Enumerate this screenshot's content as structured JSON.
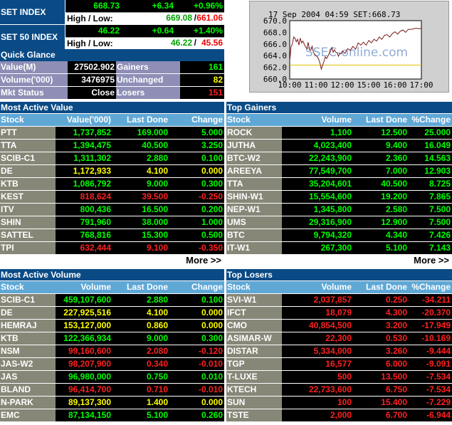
{
  "set_index": {
    "label": "SET INDEX",
    "value": "668.73",
    "change": "+6.34",
    "pct": "+0.96%",
    "hl_label": "High / Low:",
    "high": "669.08",
    "low": "661.06"
  },
  "set50_index": {
    "label": "SET 50 INDEX",
    "value": "46.22",
    "change": "+0.64",
    "pct": "+1.40%",
    "hl_label": "High / Low:",
    "high": "46.22",
    "low": "45.56"
  },
  "quick_glance": {
    "title": "Quick Glance",
    "rows": [
      {
        "k": "Value(M)",
        "v": "27502.902",
        "k2": "Gainers",
        "v2": "161"
      },
      {
        "k": "Volume('000)",
        "v": "3476975",
        "k2": "Unchanged",
        "v2": "82"
      },
      {
        "k": "Mkt Status",
        "v": "Close",
        "k2": "Losers",
        "v2": "151"
      }
    ]
  },
  "chart_data": {
    "type": "line",
    "title": "17 Sep 2004 04:59    SET:668.73",
    "watermark": "SSEC-online.com",
    "x_ticks": [
      "10:00",
      "11:00",
      "12:00",
      "15:00",
      "16:00",
      "17:00"
    ],
    "y_ticks": [
      660.0,
      662.0,
      664.0,
      666.0,
      668.0,
      670.0
    ],
    "ylim": [
      660,
      670
    ],
    "reference_line": 662.4,
    "colors": {
      "line": "#7a1a1a",
      "reference": "#e0c000",
      "background": "#ffffff"
    },
    "x": [
      0,
      0.05,
      0.1,
      0.15,
      0.2,
      0.25,
      0.3,
      0.35,
      0.4,
      0.45,
      0.5,
      0.55,
      0.6,
      0.65,
      0.7,
      0.75,
      0.8,
      0.85,
      0.9,
      0.95,
      1.0,
      1.05,
      1.1,
      1.15,
      1.2,
      1.25,
      1.3,
      1.35,
      1.4,
      1.45,
      1.5,
      1.55,
      1.6,
      1.65,
      1.7,
      1.75,
      1.8,
      1.85,
      1.9,
      1.95,
      2.0,
      2.1,
      2.2,
      2.3,
      2.4,
      2.5,
      2.6,
      2.7,
      2.8,
      2.9,
      3.0,
      3.1,
      3.2,
      3.3,
      3.4,
      3.5,
      3.6,
      3.7,
      3.8,
      3.9,
      4.0,
      4.1,
      4.2,
      4.3,
      4.4,
      4.5,
      4.6,
      4.7,
      4.8,
      4.9,
      5.0
    ],
    "y": [
      663.0,
      665.5,
      666.0,
      667.2,
      667.0,
      666.4,
      666.8,
      665.8,
      667.0,
      666.2,
      666.5,
      666.0,
      665.5,
      665.2,
      666.3,
      665.0,
      664.9,
      665.6,
      664.6,
      664.2,
      664.0,
      663.8,
      663.4,
      662.7,
      661.7,
      662.4,
      663.0,
      663.8,
      663.5,
      663.9,
      664.4,
      664.8,
      665.4,
      664.6,
      665.0,
      664.6,
      664.5,
      663.9,
      664.4,
      664.3,
      664.8,
      664.4,
      665.2,
      664.9,
      665.6,
      665.1,
      666.2,
      665.8,
      666.3,
      665.8,
      666.6,
      666.2,
      666.8,
      666.5,
      667.2,
      666.8,
      667.5,
      667.6,
      667.2,
      667.8,
      668.1,
      667.7,
      668.2,
      668.4,
      668.0,
      668.5,
      668.5,
      668.6,
      668.7,
      668.6,
      668.7
    ]
  },
  "tables": {
    "most_active_value": {
      "title": "Most Active Value",
      "headers": [
        "Stock",
        "Value('000)",
        "Last Done",
        "Change"
      ],
      "rows": [
        {
          "s": "PTT",
          "a": "1,737,852",
          "b": "169.000",
          "c": "5.000",
          "col": "g"
        },
        {
          "s": "TTA",
          "a": "1,394,475",
          "b": "40.500",
          "c": "3.250",
          "col": "g"
        },
        {
          "s": "SCIB-C1",
          "a": "1,311,302",
          "b": "2.880",
          "c": "0.100",
          "col": "g"
        },
        {
          "s": "DE",
          "a": "1,172,933",
          "b": "4.100",
          "c": "0.000",
          "col": "y"
        },
        {
          "s": "KTB",
          "a": "1,086,792",
          "b": "9.000",
          "c": "0.300",
          "col": "g"
        },
        {
          "s": "KEST",
          "a": "818,624",
          "b": "39.500",
          "c": "-0.250",
          "col": "r"
        },
        {
          "s": "ITV",
          "a": "800,436",
          "b": "16.500",
          "c": "0.200",
          "col": "g"
        },
        {
          "s": "SHIN",
          "a": "791,960",
          "b": "38.000",
          "c": "1.000",
          "col": "g"
        },
        {
          "s": "SATTEL",
          "a": "768,816",
          "b": "15.300",
          "c": "0.500",
          "col": "g"
        },
        {
          "s": "TPI",
          "a": "632,444",
          "b": "9.100",
          "c": "-0.350",
          "col": "r"
        }
      ],
      "more": "More >>"
    },
    "top_gainers": {
      "title": "Top Gainers",
      "headers": [
        "Stock",
        "Volume",
        "Last Done",
        "%Change"
      ],
      "rows": [
        {
          "s": "ROCK",
          "a": "1,100",
          "b": "12.500",
          "c": "25.000",
          "col": "g"
        },
        {
          "s": "JUTHA",
          "a": "4,023,400",
          "b": "9.400",
          "c": "16.049",
          "col": "g"
        },
        {
          "s": "BTC-W2",
          "a": "22,243,900",
          "b": "2.360",
          "c": "14.563",
          "col": "g"
        },
        {
          "s": "AREEYA",
          "a": "77,549,700",
          "b": "7.000",
          "c": "12.903",
          "col": "g"
        },
        {
          "s": "TTA",
          "a": "35,204,601",
          "b": "40.500",
          "c": "8.725",
          "col": "g"
        },
        {
          "s": "SHIN-W1",
          "a": "15,554,600",
          "b": "19.200",
          "c": "7.865",
          "col": "g"
        },
        {
          "s": "NEP-W1",
          "a": "1,345,800",
          "b": "2.580",
          "c": "7.500",
          "col": "g"
        },
        {
          "s": "UMS",
          "a": "29,316,900",
          "b": "12.900",
          "c": "7.500",
          "col": "g"
        },
        {
          "s": "BTC",
          "a": "9,794,320",
          "b": "4.340",
          "c": "7.426",
          "col": "g"
        },
        {
          "s": "IT-W1",
          "a": "267,300",
          "b": "5.100",
          "c": "7.143",
          "col": "g"
        }
      ],
      "more": "More >>"
    },
    "most_active_volume": {
      "title": "Most Active Volume",
      "headers": [
        "Stock",
        "Volume",
        "Last Done",
        "Change"
      ],
      "rows": [
        {
          "s": "SCIB-C1",
          "a": "459,107,600",
          "b": "2.880",
          "c": "0.100",
          "col": "g"
        },
        {
          "s": "DE",
          "a": "227,925,516",
          "b": "4.100",
          "c": "0.000",
          "col": "y"
        },
        {
          "s": "HEMRAJ",
          "a": "153,127,000",
          "b": "0.860",
          "c": "0.000",
          "col": "y"
        },
        {
          "s": "KTB",
          "a": "122,366,934",
          "b": "9.000",
          "c": "0.300",
          "col": "g"
        },
        {
          "s": "NSM",
          "a": "99,160,600",
          "b": "2.080",
          "c": "-0.120",
          "col": "r"
        },
        {
          "s": "JAS-W2",
          "a": "98,207,900",
          "b": "0.340",
          "c": "-0.010",
          "col": "r"
        },
        {
          "s": "JAS",
          "a": "96,980,000",
          "b": "0.750",
          "c": "0.010",
          "col": "g"
        },
        {
          "s": "BLAND",
          "a": "96,414,700",
          "b": "0.710",
          "c": "-0.010",
          "col": "r"
        },
        {
          "s": "N-PARK",
          "a": "89,137,300",
          "b": "1.400",
          "c": "0.000",
          "col": "y"
        },
        {
          "s": "EMC",
          "a": "87,134,150",
          "b": "5.100",
          "c": "0.260",
          "col": "g"
        }
      ]
    },
    "top_losers": {
      "title": "Top Losers",
      "headers": [
        "Stock",
        "Volume",
        "Last Done",
        "%Change"
      ],
      "rows": [
        {
          "s": "SVI-W1",
          "a": "2,037,857",
          "b": "0.250",
          "c": "-34.211",
          "col": "r"
        },
        {
          "s": "IFCT",
          "a": "18,079",
          "b": "4.300",
          "c": "-20.370",
          "col": "r"
        },
        {
          "s": "CMO",
          "a": "40,854,500",
          "b": "3.200",
          "c": "-17.949",
          "col": "r"
        },
        {
          "s": "ASIMAR-W",
          "a": "22,300",
          "b": "0.530",
          "c": "-10.169",
          "col": "r"
        },
        {
          "s": "DISTAR",
          "a": "5,334,000",
          "b": "3.260",
          "c": "-9.444",
          "col": "r"
        },
        {
          "s": "TGP",
          "a": "16,577",
          "b": "6.000",
          "c": "-9.091",
          "col": "r"
        },
        {
          "s": "T-LUXE",
          "a": "500",
          "b": "13.500",
          "c": "-7.534",
          "col": "r"
        },
        {
          "s": "KTECH",
          "a": "22,733,600",
          "b": "6.750",
          "c": "-7.534",
          "col": "r"
        },
        {
          "s": "SUN",
          "a": "100",
          "b": "15.400",
          "c": "-7.229",
          "col": "r"
        },
        {
          "s": "TSTE",
          "a": "2,000",
          "b": "6.700",
          "c": "-6.944",
          "col": "r"
        }
      ]
    }
  }
}
